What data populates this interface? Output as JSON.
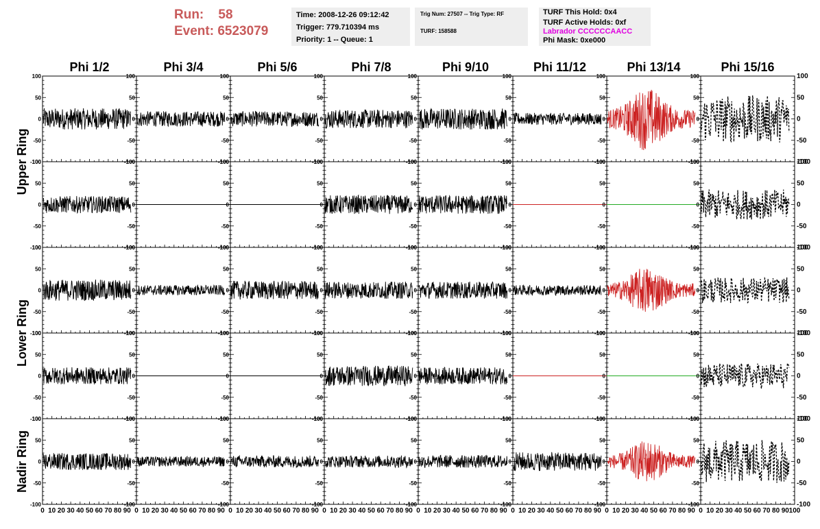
{
  "header": {
    "run_label": "Run:",
    "run_value": "58",
    "event_label": "Event:",
    "event_value": "6523079",
    "time": "Time: 2008-12-26 09:12:42",
    "trigger": "Trigger: 779.710394 ms",
    "priority": "Priority: 1 -- Queue: 1",
    "trig_num": "Trig Num: 27507 -- Trig Type: RF",
    "turf": "TURF: 158588",
    "turf_this_hold": "TURF This Hold: 0x4",
    "turf_active_holds": "TURF Active Holds: 0xf",
    "labrador": "Labrador CCCCCCAACC",
    "phi_mask": "Phi Mask: 0xe000"
  },
  "colors": {
    "run_text": "#c85a5a",
    "labrador_text": "#e000e0",
    "trace_black": "#000000",
    "trace_red": "#cc2222",
    "trace_green": "#22aa22",
    "info_box_bg": "#eeeeee"
  },
  "chart_data": {
    "type": "line",
    "columns": [
      "Phi 1/2",
      "Phi 3/4",
      "Phi 5/6",
      "Phi 7/8",
      "Phi 9/10",
      "Phi 11/12",
      "Phi 13/14",
      "Phi 15/16"
    ],
    "ring_labels": [
      {
        "label": "Upper Ring",
        "rows": [
          0,
          1
        ]
      },
      {
        "label": "Lower Ring",
        "rows": [
          2,
          3
        ]
      },
      {
        "label": "Nadir Ring",
        "rows": [
          4
        ]
      }
    ],
    "ylim": [
      -100,
      100
    ],
    "xlim": [
      0,
      100
    ],
    "yticks": [
      "100",
      "50",
      "0",
      "-50",
      "-100"
    ],
    "xticks_per_panel": [
      "0",
      "10",
      "20",
      "30",
      "40",
      "50",
      "60",
      "70",
      "80",
      "90",
      "100"
    ],
    "panels": [
      [
        {
          "style": "solid",
          "color": "black",
          "amplitude": 25
        },
        {
          "style": "solid",
          "color": "black",
          "amplitude": 18
        },
        {
          "style": "solid",
          "color": "black",
          "amplitude": 18
        },
        {
          "style": "solid",
          "color": "black",
          "amplitude": 22
        },
        {
          "style": "solid",
          "color": "black",
          "amplitude": 25
        },
        {
          "style": "solid",
          "color": "black",
          "amplitude": 14
        },
        {
          "style": "solid",
          "color": "red",
          "amplitude": 60
        },
        {
          "style": "dashed",
          "color": "black",
          "amplitude": 55
        }
      ],
      [
        {
          "style": "solid",
          "color": "black",
          "amplitude": 20
        },
        {
          "style": "flat",
          "color": "black",
          "amplitude": 0
        },
        {
          "style": "flat",
          "color": "black",
          "amplitude": 0
        },
        {
          "style": "solid",
          "color": "black",
          "amplitude": 22
        },
        {
          "style": "solid",
          "color": "black",
          "amplitude": 22
        },
        {
          "style": "flat",
          "color": "red",
          "amplitude": 0
        },
        {
          "style": "flat",
          "color": "green",
          "amplitude": 0
        },
        {
          "style": "dashed",
          "color": "black",
          "amplitude": 35
        }
      ],
      [
        {
          "style": "solid",
          "color": "black",
          "amplitude": 25
        },
        {
          "style": "solid",
          "color": "black",
          "amplitude": 12
        },
        {
          "style": "solid",
          "color": "black",
          "amplitude": 22
        },
        {
          "style": "solid",
          "color": "black",
          "amplitude": 20
        },
        {
          "style": "solid",
          "color": "black",
          "amplitude": 20
        },
        {
          "style": "solid",
          "color": "black",
          "amplitude": 12
        },
        {
          "style": "solid",
          "color": "red",
          "amplitude": 45
        },
        {
          "style": "dashed",
          "color": "black",
          "amplitude": 30
        }
      ],
      [
        {
          "style": "solid",
          "color": "black",
          "amplitude": 20
        },
        {
          "style": "flat",
          "color": "black",
          "amplitude": 0
        },
        {
          "style": "flat",
          "color": "black",
          "amplitude": 0
        },
        {
          "style": "solid",
          "color": "black",
          "amplitude": 24
        },
        {
          "style": "solid",
          "color": "black",
          "amplitude": 20
        },
        {
          "style": "flat",
          "color": "red",
          "amplitude": 0
        },
        {
          "style": "flat",
          "color": "green",
          "amplitude": 0
        },
        {
          "style": "dashed",
          "color": "black",
          "amplitude": 30
        }
      ],
      [
        {
          "style": "solid",
          "color": "black",
          "amplitude": 20
        },
        {
          "style": "solid",
          "color": "black",
          "amplitude": 12
        },
        {
          "style": "solid",
          "color": "black",
          "amplitude": 14
        },
        {
          "style": "solid",
          "color": "black",
          "amplitude": 14
        },
        {
          "style": "solid",
          "color": "black",
          "amplitude": 15
        },
        {
          "style": "solid",
          "color": "black",
          "amplitude": 22
        },
        {
          "style": "solid",
          "color": "red",
          "amplitude": 40
        },
        {
          "style": "dashed",
          "color": "black",
          "amplitude": 50
        }
      ]
    ]
  }
}
